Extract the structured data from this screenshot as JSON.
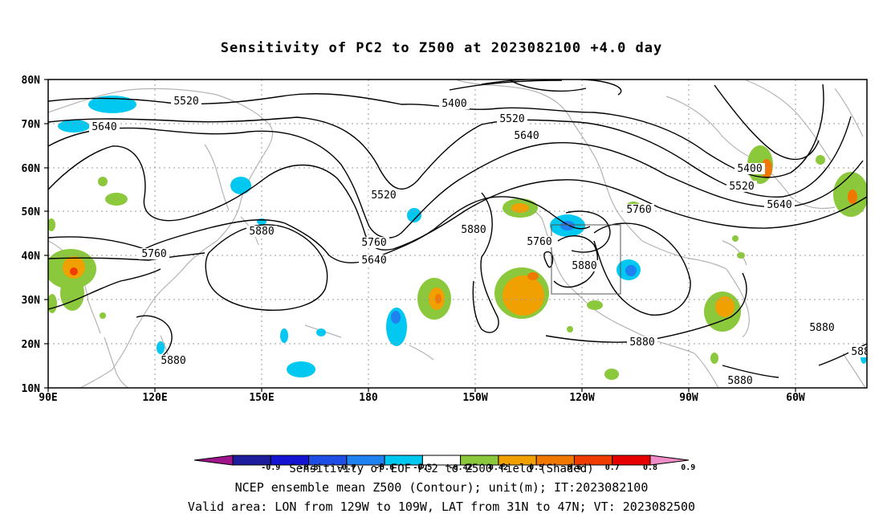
{
  "title": "Sensitivity of PC2 to Z500 at 2023082100 +4.0 day",
  "lat_ticks": [
    "80N",
    "70N",
    "60N",
    "50N",
    "40N",
    "30N",
    "20N",
    "10N"
  ],
  "lon_ticks": [
    "90E",
    "120E",
    "150E",
    "180",
    "150W",
    "120W",
    "90W",
    "60W"
  ],
  "contour_labels": [
    "5520",
    "5400",
    "5520",
    "5640",
    "5640",
    "5520",
    "5400",
    "5520",
    "5640",
    "5760",
    "5760",
    "5880",
    "5760",
    "5640",
    "5760",
    "5880",
    "5880",
    "5880",
    "5880",
    "5880",
    "5880",
    "5880"
  ],
  "colorbar": {
    "ticks": [
      "-0.9",
      "-0.8",
      "-0.7",
      "-0.6",
      "-0.5",
      "-0.42",
      "0.42",
      "0.5",
      "0.6",
      "0.7",
      "0.8",
      "0.9"
    ],
    "colors": [
      "#a0148c",
      "#1e1e9c",
      "#1414d2",
      "#1e4ee6",
      "#1e82f0",
      "#00c8f0",
      "#ffffff",
      "#8cc83c",
      "#f0a000",
      "#f07800",
      "#f03c00",
      "#e60000",
      "#f08cc8"
    ]
  },
  "captions": {
    "line1": "Sensitivity of EOF PC2 to Z500 field (Shaded)",
    "line2": "NCEP ensemble mean Z500 (Contour); unit(m); IT:2023082100",
    "line3": "Valid area: LON from 129W to 109W, LAT from 31N to 47N; VT: 2023082500"
  },
  "valid_box": {
    "lon_min": -129,
    "lon_max": -109,
    "lat_min": 31,
    "lat_max": 47
  }
}
